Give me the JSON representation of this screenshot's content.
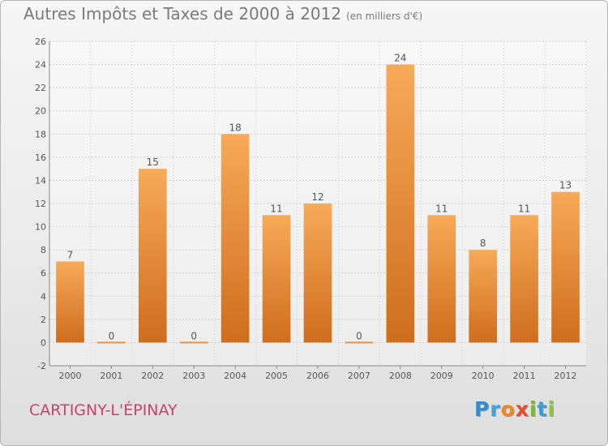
{
  "chart_data": {
    "type": "bar",
    "title": "Autres Impôts et Taxes de 2000 à 2012",
    "subtitle": "(en milliers d'€)",
    "categories": [
      "2000",
      "2001",
      "2002",
      "2003",
      "2004",
      "2005",
      "2006",
      "2007",
      "2008",
      "2009",
      "2010",
      "2011",
      "2012"
    ],
    "values": [
      7,
      0,
      15,
      0,
      18,
      11,
      12,
      0,
      24,
      11,
      8,
      11,
      13
    ],
    "ylim": [
      -2,
      26
    ],
    "yticks": [
      -2,
      0,
      2,
      4,
      6,
      8,
      10,
      12,
      14,
      16,
      18,
      20,
      22,
      24,
      26
    ],
    "grid": true,
    "bar_color": "#f0913c",
    "bar_color_light": "#f7aa58",
    "bar_color_dark": "#cf6d1e"
  },
  "commune": "CARTIGNY-L'ÉPINAY",
  "brand": {
    "name": "Proxiti",
    "letters": [
      {
        "ch": "P",
        "color": "#2e8fd0"
      },
      {
        "ch": "r",
        "color": "#39a8dc"
      },
      {
        "ch": "o",
        "color": "#f08a1c"
      },
      {
        "ch": "x",
        "color": "#e84c2c"
      },
      {
        "ch": "i",
        "color": "#7cba2d"
      },
      {
        "ch": "t",
        "color": "#3e9bd6"
      },
      {
        "ch": "i",
        "color": "#8cc63f"
      }
    ]
  }
}
